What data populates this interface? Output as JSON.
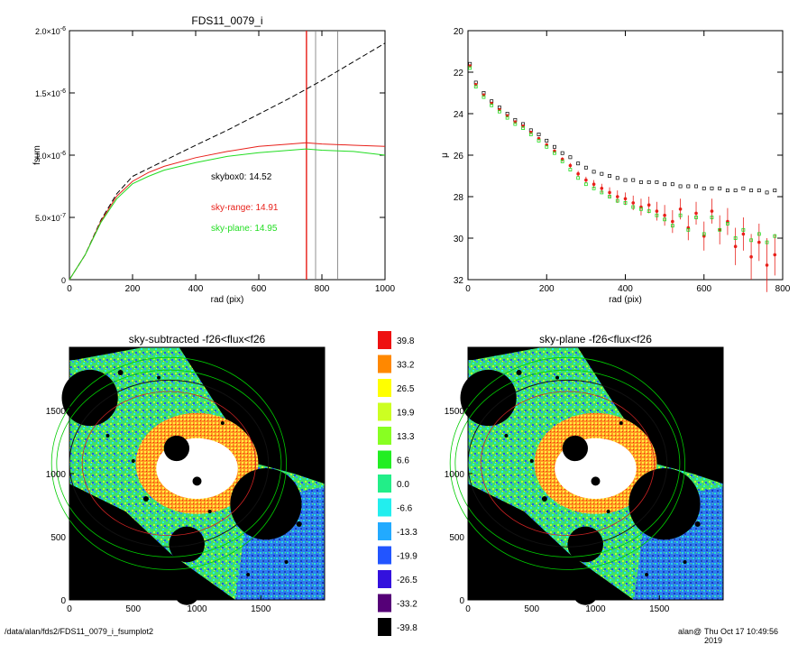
{
  "footer": {
    "path": "/data/alan/fds2/FDS11_0079_i_fsumplot2",
    "user": "alan@",
    "timestamp": "Thu Oct 17 10:49:56 2019"
  },
  "chart_data": [
    {
      "type": "line",
      "title": "FDS11_0079_i",
      "xlabel": "rad (pix)",
      "ylabel": "fsum",
      "xlim": [
        0,
        1000
      ],
      "ylim": [
        0,
        2e-06
      ],
      "xticks": [
        "0",
        "200",
        "400",
        "600",
        "800",
        "1000"
      ],
      "yticks": [
        {
          "mant": "0",
          "exp": ""
        },
        {
          "mant": "5.0×10",
          "exp": "-7"
        },
        {
          "mant": "1.0×10",
          "exp": "-6"
        },
        {
          "mant": "1.5×10",
          "exp": "-6"
        },
        {
          "mant": "2.0×10",
          "exp": "-6"
        }
      ],
      "annotations": [
        {
          "text": "skybox0: 14.52",
          "color": "#000000"
        },
        {
          "text": "sky-range: 14.91",
          "color": "#e8201a"
        },
        {
          "text": "sky-plane: 14.95",
          "color": "#22dd22"
        }
      ],
      "vlines": [
        {
          "x": 750,
          "color": "#e8201a"
        },
        {
          "x": 780,
          "color": "#777777"
        },
        {
          "x": 850,
          "color": "#777777"
        },
        {
          "x": 752,
          "color": "#e8201a"
        }
      ],
      "series": [
        {
          "color": "#000000",
          "dash": true,
          "x": [
            0,
            50,
            100,
            150,
            200,
            300,
            400,
            500,
            600,
            700,
            800,
            900,
            1000
          ],
          "y": [
            0,
            2e-07,
            4.8e-07,
            6.9e-07,
            8.3e-07,
            9.55e-07,
            1.08e-06,
            1.2e-06,
            1.33e-06,
            1.46e-06,
            1.6e-06,
            1.75e-06,
            1.9e-06
          ]
        },
        {
          "color": "#e8201a",
          "dash": false,
          "x": [
            0,
            50,
            100,
            150,
            200,
            250,
            300,
            400,
            500,
            600,
            700,
            750,
            800,
            900,
            1000
          ],
          "y": [
            0,
            2e-07,
            4.7e-07,
            6.7e-07,
            7.9e-07,
            8.6e-07,
            9.1e-07,
            9.8e-07,
            1.03e-06,
            1.07e-06,
            1.09e-06,
            1.1e-06,
            1.09e-06,
            1.08e-06,
            1.07e-06
          ]
        },
        {
          "color": "#22dd22",
          "dash": false,
          "x": [
            0,
            50,
            100,
            150,
            200,
            250,
            300,
            400,
            500,
            600,
            700,
            750,
            800,
            900,
            1000
          ],
          "y": [
            0,
            2e-07,
            4.6e-07,
            6.5e-07,
            7.7e-07,
            8.3e-07,
            8.8e-07,
            9.4e-07,
            9.9e-07,
            1.02e-06,
            1.04e-06,
            1.05e-06,
            1.04e-06,
            1.03e-06,
            1e-06
          ]
        }
      ]
    },
    {
      "type": "scatter",
      "xlabel": "rad (pix)",
      "ylabel": "μ",
      "xlim": [
        0,
        800
      ],
      "ylim": [
        32,
        20
      ],
      "xticks": [
        "0",
        "200",
        "400",
        "600",
        "800"
      ],
      "yticks": [
        "20",
        "22",
        "24",
        "26",
        "28",
        "30",
        "32"
      ],
      "series": [
        {
          "color": "#000000",
          "marker": "square",
          "x": [
            5,
            20,
            40,
            60,
            80,
            100,
            120,
            140,
            160,
            180,
            200,
            220,
            240,
            260,
            280,
            300,
            320,
            340,
            360,
            380,
            400,
            420,
            440,
            460,
            480,
            500,
            520,
            540,
            560,
            580,
            600,
            620,
            640,
            660,
            680,
            700,
            720,
            740,
            760,
            780
          ],
          "y": [
            21.6,
            22.5,
            23.0,
            23.4,
            23.7,
            24.0,
            24.3,
            24.5,
            24.8,
            25.0,
            25.3,
            25.6,
            25.9,
            26.1,
            26.4,
            26.6,
            26.8,
            26.9,
            27.0,
            27.1,
            27.2,
            27.2,
            27.3,
            27.3,
            27.3,
            27.4,
            27.4,
            27.5,
            27.5,
            27.5,
            27.6,
            27.6,
            27.6,
            27.7,
            27.7,
            27.6,
            27.7,
            27.7,
            27.8,
            27.7
          ]
        },
        {
          "color": "#e8201a",
          "marker": "circle",
          "x": [
            5,
            20,
            40,
            60,
            80,
            100,
            120,
            140,
            160,
            180,
            200,
            220,
            240,
            260,
            280,
            300,
            320,
            340,
            360,
            380,
            400,
            420,
            440,
            460,
            480,
            500,
            520,
            540,
            560,
            580,
            600,
            620,
            640,
            660,
            680,
            700,
            720,
            740,
            760,
            780
          ],
          "y": [
            21.7,
            22.6,
            23.1,
            23.5,
            23.8,
            24.1,
            24.4,
            24.6,
            24.9,
            25.2,
            25.5,
            25.8,
            26.2,
            26.5,
            26.9,
            27.2,
            27.4,
            27.6,
            27.8,
            28.0,
            28.1,
            28.3,
            28.5,
            28.4,
            28.7,
            28.9,
            29.2,
            28.6,
            29.5,
            28.8,
            29.9,
            28.7,
            29.6,
            29.2,
            30.4,
            29.8,
            30.9,
            30.2,
            31.3,
            30.8
          ],
          "err": [
            0.05,
            0.05,
            0.05,
            0.05,
            0.05,
            0.05,
            0.05,
            0.05,
            0.06,
            0.06,
            0.07,
            0.08,
            0.1,
            0.12,
            0.14,
            0.16,
            0.2,
            0.22,
            0.25,
            0.3,
            0.3,
            0.35,
            0.4,
            0.4,
            0.45,
            0.5,
            0.55,
            0.5,
            0.6,
            0.55,
            0.7,
            0.6,
            0.7,
            0.65,
            0.9,
            0.8,
            1.1,
            0.9,
            1.3,
            1.0
          ]
        },
        {
          "color": "#22dd22",
          "marker": "square-open",
          "x": [
            5,
            20,
            40,
            60,
            80,
            100,
            120,
            140,
            160,
            180,
            200,
            220,
            240,
            260,
            280,
            300,
            320,
            340,
            360,
            380,
            400,
            420,
            440,
            460,
            480,
            500,
            520,
            540,
            560,
            580,
            600,
            620,
            640,
            660,
            680,
            700,
            720,
            740,
            760,
            780
          ],
          "y": [
            21.8,
            22.7,
            23.2,
            23.6,
            23.9,
            24.2,
            24.5,
            24.7,
            25.0,
            25.3,
            25.6,
            25.9,
            26.3,
            26.7,
            27.1,
            27.4,
            27.6,
            27.8,
            28.0,
            28.2,
            28.3,
            28.5,
            28.6,
            28.7,
            28.9,
            29.1,
            29.4,
            28.9,
            29.6,
            29.0,
            29.8,
            29.0,
            29.6,
            29.3,
            30.0,
            29.6,
            30.1,
            29.8,
            30.2,
            29.9
          ]
        }
      ]
    },
    {
      "type": "heatmap",
      "title": "sky-subtracted -f26<flux<f26",
      "xlim": [
        0,
        2000
      ],
      "ylim": [
        0,
        2000
      ],
      "xticks": [
        "0",
        "500",
        "1000",
        "1500"
      ],
      "yticks": [
        "0",
        "500",
        "1000",
        "1500"
      ]
    },
    {
      "type": "heatmap",
      "title": "sky-plane -f26<flux<f26",
      "xlim": [
        0,
        2000
      ],
      "ylim": [
        0,
        2000
      ],
      "xticks": [
        "0",
        "500",
        "1000",
        "1500"
      ],
      "yticks": [
        "0",
        "500",
        "1000",
        "1500"
      ]
    },
    {
      "type": "table",
      "colorbar": [
        {
          "label": "39.8",
          "color": "#ee1111"
        },
        {
          "label": "33.2",
          "color": "#ff8800"
        },
        {
          "label": "26.5",
          "color": "#ffff00"
        },
        {
          "label": "19.9",
          "color": "#ccff22"
        },
        {
          "label": "13.3",
          "color": "#88ff22"
        },
        {
          "label": "6.6",
          "color": "#22ee22"
        },
        {
          "label": "0.0",
          "color": "#22ee88"
        },
        {
          "label": "-6.6",
          "color": "#22eeee"
        },
        {
          "label": "-13.3",
          "color": "#22aaff"
        },
        {
          "label": "-19.9",
          "color": "#2255ff"
        },
        {
          "label": "-26.5",
          "color": "#3311dd"
        },
        {
          "label": "-33.2",
          "color": "#550077"
        },
        {
          "label": "-39.8",
          "color": "#000000"
        }
      ]
    }
  ]
}
